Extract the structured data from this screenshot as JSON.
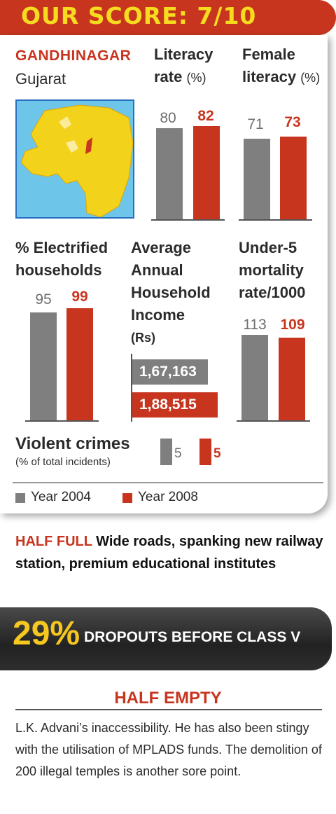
{
  "score": {
    "label": "OUR SCORE: 7/10"
  },
  "location": {
    "city": "GANDHINAGAR",
    "state": "Gujarat"
  },
  "colors": {
    "year_2004": "#7f7f7f",
    "year_2008": "#c8351f",
    "accent": "#c8351f",
    "score_text": "#f6dc1f"
  },
  "panels": {
    "literacy": {
      "title_line1": "Literacy",
      "title_line2": "rate",
      "unit": "(%)"
    },
    "female_literacy": {
      "title_line1": "Female",
      "title_line2": "literacy",
      "unit": "(%)"
    },
    "electrified": {
      "title_line1": "% Electrified",
      "title_line2": "households"
    },
    "income": {
      "title_line1": "Average",
      "title_line2": "Annual",
      "title_line3": "Household",
      "title_line4": "Income",
      "unit": "(Rs)"
    },
    "mortality": {
      "title_line1": "Under-5",
      "title_line2": "mortality",
      "title_line3": "rate/1000"
    },
    "crimes": {
      "title": "Violent crimes",
      "subtitle": "(% of total incidents)"
    }
  },
  "chart_data": [
    {
      "type": "bar",
      "title": "Literacy rate (%)",
      "categories": [
        "Year 2004",
        "Year 2008"
      ],
      "values": [
        80,
        82
      ],
      "labels": [
        "80",
        "82"
      ]
    },
    {
      "type": "bar",
      "title": "Female literacy (%)",
      "categories": [
        "Year 2004",
        "Year 2008"
      ],
      "values": [
        71,
        73
      ],
      "labels": [
        "71",
        "73"
      ]
    },
    {
      "type": "bar",
      "title": "% Electrified households",
      "categories": [
        "Year 2004",
        "Year 2008"
      ],
      "values": [
        95,
        99
      ],
      "labels": [
        "95",
        "99"
      ]
    },
    {
      "type": "bar",
      "orientation": "horizontal",
      "title": "Average Annual Household Income (Rs)",
      "categories": [
        "Year 2004",
        "Year 2008"
      ],
      "values": [
        167163,
        188515
      ],
      "labels": [
        "1,67,163",
        "1,88,515"
      ]
    },
    {
      "type": "bar",
      "title": "Under-5 mortality rate/1000",
      "categories": [
        "Year 2004",
        "Year 2008"
      ],
      "values": [
        113,
        109
      ],
      "labels": [
        "113",
        "109"
      ]
    },
    {
      "type": "bar",
      "title": "Violent crimes (% of total incidents)",
      "categories": [
        "Year 2004",
        "Year 2008"
      ],
      "values": [
        5,
        5
      ],
      "labels": [
        "5",
        "5"
      ]
    }
  ],
  "legend": {
    "year_2004": "Year 2004",
    "year_2008": "Year 2008"
  },
  "half_full": {
    "label": "HALF FULL",
    "text": "Wide roads, spanking new railway station, premium educational institutes"
  },
  "dropouts": {
    "percent": "29%",
    "text": "DROPOUTS BEFORE CLASS V"
  },
  "half_empty": {
    "title": "HALF EMPTY",
    "text": "L.K. Advani’s inaccessibility. He has also been stingy with the utilisation of MPLADS funds. The demolition of 200 illegal temples is another sore point."
  }
}
